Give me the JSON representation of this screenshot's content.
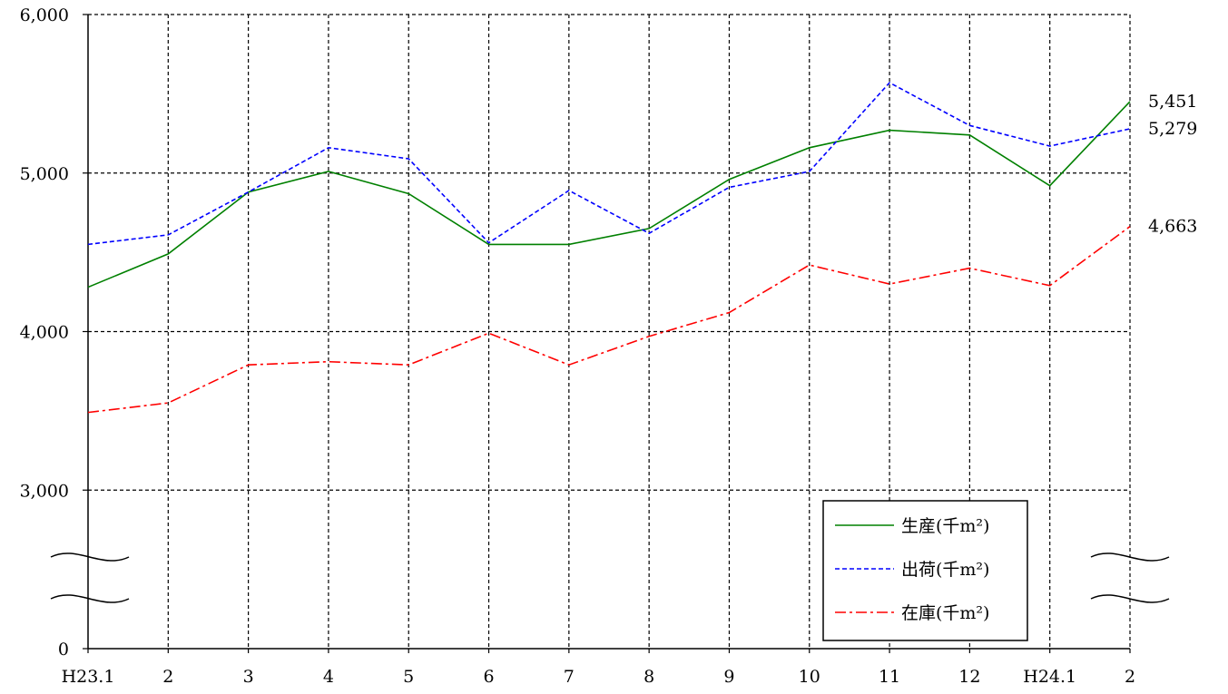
{
  "chart_data": {
    "type": "line",
    "categories": [
      "H23.1",
      "2",
      "3",
      "4",
      "5",
      "6",
      "7",
      "8",
      "9",
      "10",
      "11",
      "12",
      "H24.1",
      "2"
    ],
    "y_ticks": [
      "0",
      "3,000",
      "4,000",
      "5,000",
      "6,000"
    ],
    "ylim": [
      2500,
      6000
    ],
    "y_axis_break": true,
    "grid": true,
    "legend_position": "bottom-right",
    "series": [
      {
        "name": "生産(千m²)",
        "color": "#008000",
        "dash": "solid",
        "values": [
          4280,
          4490,
          4880,
          5010,
          4870,
          4550,
          4550,
          4650,
          4960,
          5160,
          5270,
          5240,
          4920,
          5451
        ],
        "end_label": "5,451"
      },
      {
        "name": "出荷(千m²)",
        "color": "#0000ff",
        "dash": "dashed",
        "values": [
          4550,
          4610,
          4880,
          5160,
          5090,
          4560,
          4890,
          4620,
          4910,
          5010,
          5570,
          5300,
          5170,
          5279
        ],
        "end_label": "5,279"
      },
      {
        "name": "在庫(千m²)",
        "color": "#ff0000",
        "dash": "dash-dot",
        "values": [
          3490,
          3550,
          3790,
          3810,
          3790,
          3990,
          3790,
          3970,
          4120,
          4420,
          4300,
          4400,
          4290,
          4663
        ],
        "end_label": "4,663"
      }
    ]
  }
}
